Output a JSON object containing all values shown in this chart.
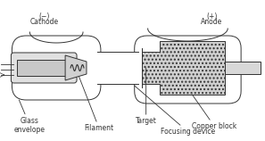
{
  "bg_color": "#ffffff",
  "line_color": "#333333",
  "labels": {
    "filament": "Filament",
    "glass_envelope": "Glass\nenvelope",
    "focusing_device": "Focusing device",
    "target": "Target",
    "copper_block": "Copper block",
    "cathode": "Cathode",
    "cathode_sign": "(−)",
    "anode": "Anode",
    "anode_sign": "(+)"
  },
  "font_size": 5.5
}
